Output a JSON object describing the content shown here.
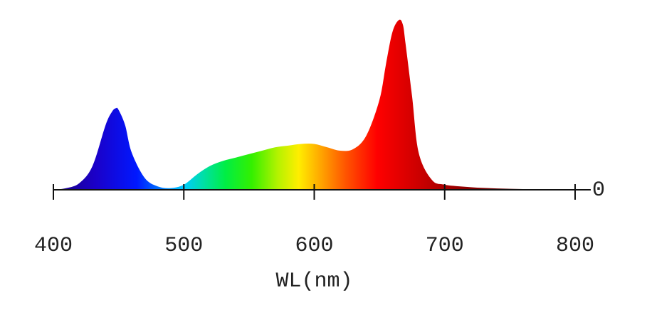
{
  "chart_data": {
    "type": "area",
    "xlabel": "WL(nm)",
    "ylabel": "",
    "xlim": [
      400,
      800
    ],
    "ylim": [
      0,
      1
    ],
    "x_ticks": [
      "400",
      "500",
      "600",
      "700",
      "800"
    ],
    "y_ticks": [
      "0"
    ],
    "grid": false,
    "fill": "visible-spectrum color gradient",
    "series": [
      {
        "x": [
          400,
          410,
          420,
          430,
          440,
          445,
          448,
          450,
          455,
          460,
          470,
          480,
          490,
          500,
          510,
          520,
          530,
          540,
          550,
          560,
          570,
          580,
          590,
          600,
          610,
          620,
          630,
          640,
          650,
          655,
          660,
          665,
          668,
          670,
          675,
          680,
          690,
          700,
          720,
          740,
          760,
          780,
          800
        ],
        "y": [
          0.0,
          0.01,
          0.04,
          0.14,
          0.38,
          0.46,
          0.48,
          0.47,
          0.38,
          0.22,
          0.07,
          0.02,
          0.01,
          0.03,
          0.09,
          0.14,
          0.17,
          0.19,
          0.21,
          0.23,
          0.25,
          0.26,
          0.27,
          0.27,
          0.25,
          0.23,
          0.24,
          0.32,
          0.53,
          0.74,
          0.93,
          1.0,
          0.97,
          0.86,
          0.55,
          0.22,
          0.06,
          0.03,
          0.015,
          0.008,
          0.004,
          0.002,
          0.0
        ]
      }
    ]
  }
}
